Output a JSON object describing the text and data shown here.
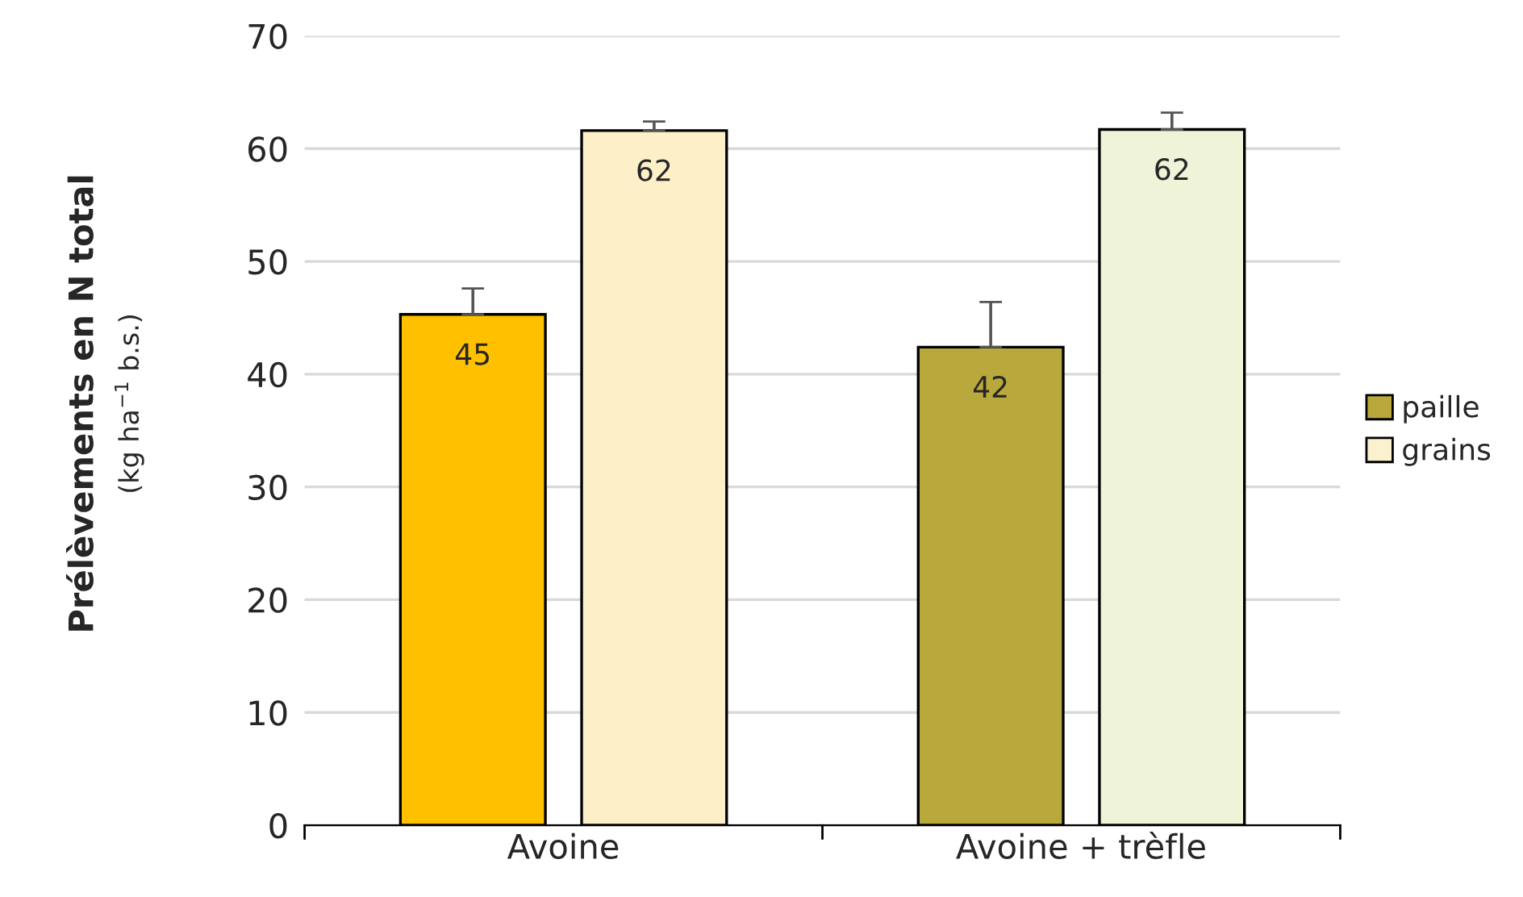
{
  "chart_data": {
    "type": "bar",
    "categories": [
      "Avoine",
      "Avoine + trèfle"
    ],
    "ylabel": "Prélèvements en N total\n(kg ha$^{−1}$ b.s.)",
    "ylim": [
      0,
      70
    ],
    "yticks": [
      0,
      10,
      20,
      30,
      40,
      50,
      60,
      70
    ],
    "grid": "y",
    "legend": "right",
    "series": [
      {
        "name": "paille",
        "color": "#b9a83c",
        "colors": [
          "#ffc000",
          "#b9a83c"
        ],
        "values": [
          45.3,
          42.4
        ],
        "errors": [
          [
            45.3,
            47.6
          ],
          [
            42.4,
            46.4
          ]
        ],
        "value_labels": [
          "45",
          "42"
        ]
      },
      {
        "name": "grains",
        "color": "#fbf1cf",
        "colors": [
          "#fdf0c8",
          "#eff4d8"
        ],
        "values": [
          61.6,
          61.7
        ],
        "errors": [
          [
            61.6,
            62.4
          ],
          [
            61.7,
            63.2
          ]
        ],
        "value_labels": [
          "62",
          "62"
        ]
      }
    ]
  }
}
